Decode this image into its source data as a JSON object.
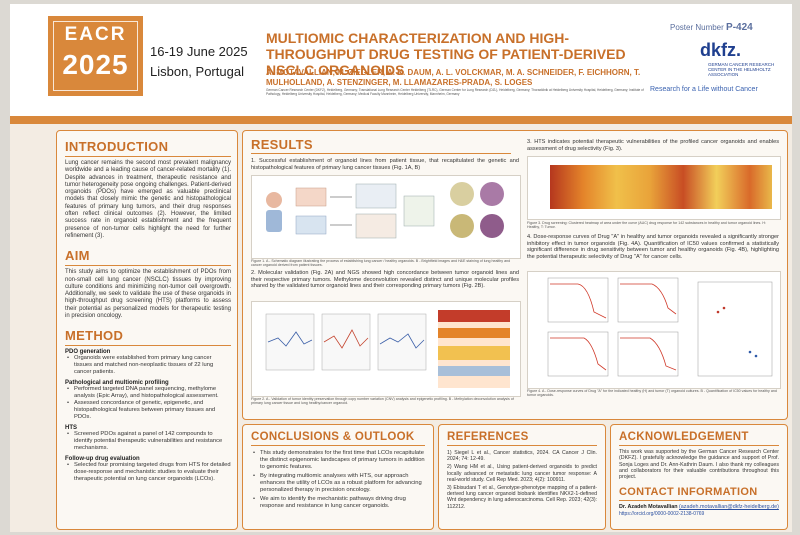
{
  "header": {
    "conference_logo_top": "EACR",
    "conference_logo_year": "2025",
    "date": "16-19 June 2025",
    "city": "Lisbon, Portugal",
    "title": "MULTIOMIC CHARACTERIZATION AND HIGH-THROUGHPUT DRUG TESTING OF PATIENT-DERIVED NSCLC ORGANOIDS",
    "authors": "A. MOTAVALLIAN, M. ZIEGLER, A. K. DAUM, A. L. VOLCKMAR, M. A. SCHNEIDER, F. EICHHORN, T. MULHOLLAND, A. STENZINGER, M. LLAMAZARES-PRADA, S. LOGES",
    "affiliations": "German Cancer Research Center (DKFZ), Heidelberg, Germany; Translational Lung Research Center Heidelberg (TLRC), German Center for Lung Research (DZL), Heidelberg, Germany; Thoraxklinik at Heidelberg University Hospital, Heidelberg, Germany; Institute of Pathology, Heidelberg University Hospital, Heidelberg, Germany; Medical Faculty Mannheim, Heidelberg University, Mannheim, Germany",
    "poster_number_label": "Poster Number",
    "poster_number": "P-424",
    "org_logo": "dkfz.",
    "org_sub": "GERMAN CANCER RESEARCH CENTER IN THE HELMHOLTZ ASSOCIATION",
    "org_tagline": "Research for a Life without Cancer"
  },
  "introduction": {
    "heading": "INTRODUCTION",
    "text": "Lung cancer remains the second most prevalent malignancy worldwide and a leading cause of cancer-related mortality (1). Despite advances in treatment, therapeutic resistance and tumor heterogeneity pose ongoing challenges. Patient-derived organoids (PDOs) have emerged as valuable preclinical models that closely mimic the genetic and histopathological features of primary lung tumors, and their drug responses often reflect clinical outcomes (2). However, the limited success rate in organoid establishment and the frequent presence of non-tumor cells highlight the need for further refinement (3)."
  },
  "aim": {
    "heading": "AIM",
    "text": "This study aims to optimize the establishment of PDOs from non-small cell lung cancer (NSCLC) tissues by improving culture conditions and minimizing non-tumor cell overgrowth. Additionally, we seek to validate the use of these organoids in high-throughput drug screening (HTS) platforms to assess their potential as personalized models for therapeutic testing in precision oncology."
  },
  "method": {
    "heading": "METHOD",
    "sections": [
      {
        "title": "PDO generation",
        "bullets": [
          "Organoids were established from primary lung cancer tissues and matched non-neoplastic tissues of 22 lung cancer patients."
        ]
      },
      {
        "title": "Pathological and multiomic profiling",
        "bullets": [
          "Performed targeted DNA panel sequencing, methylome analysis (Epic Array), and histopathological assessment.",
          "Assessed concordance of genetic, epigenetic, and histopathological features between primary tissues and PDOs."
        ]
      },
      {
        "title": "HTS",
        "bullets": [
          "Screened PDOs against a panel of 142 compounds to identify potential therapeutic vulnerabilities and resistance mechanisms."
        ]
      },
      {
        "title": "Follow-up drug evaluation",
        "bullets": [
          "Selected four promising targeted drugs from HTS for detailed dose-response and mechanistic studies to evaluate their therapeutic potential on lung cancer organoids (LCOs)."
        ]
      }
    ]
  },
  "results": {
    "heading": "RESULTS",
    "point1": "1. Successful establishment of organoid lines from patient tissue, that recapitulated the genetic and histopathological features of primary lung cancer tissues (Fig. 1A, B)",
    "fig1_caption": "Figure 1. A - Schematic diagram illustrating the process of establishing lung cancer / healthy organoids. B - Brightfield images and H&E staining of lung healthy and cancer organoid derived from patient tissues.",
    "point2": "2. Molecular validation (Fig. 2A) and NGS showed high concordance between tumor organoid lines and their respective primary tumors. Methylome deconvolution revealed distinct and unique molecular profiles shared by the validated tumor organoid lines and their corresponding primary tumors (Fig. 2B).",
    "fig2_caption": "Figure 2. A - Validation of tumor identity preservation through copy number variation (CNV) analysis and epigenetic profiling. B - Methylation deconvolution analysis of primary lung cancer tissue and lung healthy/cancer organoid.",
    "point3": "3. HTS indicates potential therapeutic vulnerabilities of the profiled cancer organoids and enables assessment of drug selectivity (Fig. 3).",
    "fig3_caption": "Figure 3. Drug screening: Clustered heatmap of area under the curve (AUC) drug response for 142 substances in healthy and tumor organoid lines. H: Healthy, T: Tumor.",
    "point4": "4. Dose-response curves of Drug \"A\" in healthy and tumor organoids revealed a significantly stronger inhibitory effect in tumor organoids (Fig. 4A). Quantification of IC50 values confirmed a statistically significant difference in drug sensitivity between tumor and healthy organoids (Fig. 4B), highlighting the potential therapeutic selectivity of Drug \"A\" for cancer cells.",
    "fig4_caption": "Figure 4. A - Dose-response curves of Drug \"A\" for the indicated healthy (H) and tumor (T) organoid cultures. B - Quantification of IC50 values for healthy and tumor organoids."
  },
  "conclusions": {
    "heading": "CONCLUSIONS & OUTLOOK",
    "bullets": [
      "This study demonstrates for the first time that LCOs recapitulate the distinct epigenomic landscapes of primary tumors in addition to genomic features.",
      "By integrating multiomic analyses with HTS, our approach enhances the utility of LCOs as a robust platform for advancing personalized therapy in precision oncology.",
      "We aim to identify the mechanistic pathways driving drug response and resistance in lung cancer organoids."
    ]
  },
  "references": {
    "heading": "REFERENCES",
    "items": [
      "1) Siegel L et al., Cancer statistics, 2024. CA Cancer J Clin. 2024; 74: 12-49.",
      "2) Wang HM et al., Using patient-derived organoids to predict locally advanced or metastatic lung cancer tumor response: A real-world study. Cell Rep Med. 2023; 4(2): 100911.",
      "3) Ebisudani T et al., Genotype-phenotype mapping of a patient-derived lung cancer organoid biobank identifies NKX2-1-defined Wnt dependency in lung adenocarcinoma. Cell Rep. 2023; 42(3): 112212."
    ]
  },
  "acknowledgement": {
    "heading": "ACKNOWLEDGEMENT",
    "text": "This work was supported by the German Cancer Research Center (DKFZ). I gratefully acknowledge the guidance and support of Prof. Sonja Loges and Dr. Ann-Kathrin Daum. I also thank my colleagues and collaborators for their valuable contributions throughout this project."
  },
  "contact": {
    "heading": "CONTACT INFORMATION",
    "name": "Dr. Azadeh Motavallian",
    "email": "(azadeh.motavallian@dkfz-heidelberg.de)",
    "orcid": "https://orcid.org/0000-0002-2138-0769"
  }
}
